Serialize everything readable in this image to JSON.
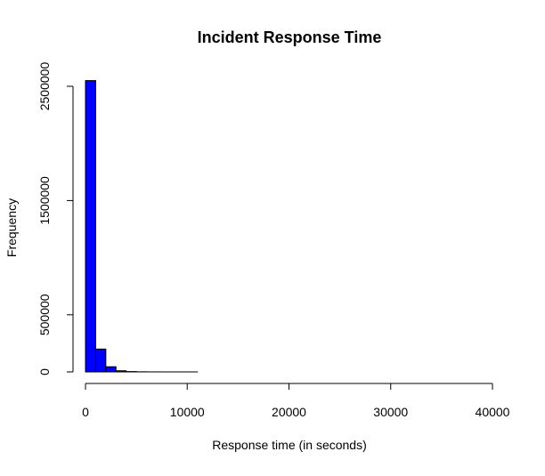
{
  "chart_data": {
    "type": "bar",
    "title": "Incident Response Time",
    "xlabel": "Response time (in seconds)",
    "ylabel": "Frequency",
    "xlim": [
      0,
      40000
    ],
    "ylim": [
      0,
      2500000
    ],
    "x_ticks": [
      0,
      10000,
      20000,
      30000,
      40000
    ],
    "x_tick_labels": [
      "0",
      "10000",
      "20000",
      "30000",
      "40000"
    ],
    "y_ticks": [
      0,
      500000,
      1500000,
      2500000
    ],
    "y_tick_labels": [
      "0",
      "500000",
      "1500000",
      "2500000"
    ],
    "bin_width": 1000,
    "bins": [
      {
        "x0": 0,
        "x1": 1000,
        "value": 2550000
      },
      {
        "x0": 1000,
        "x1": 2000,
        "value": 200000
      },
      {
        "x0": 2000,
        "x1": 3000,
        "value": 45000
      },
      {
        "x0": 3000,
        "x1": 4000,
        "value": 10000
      },
      {
        "x0": 4000,
        "x1": 5000,
        "value": 3000
      },
      {
        "x0": 5000,
        "x1": 6000,
        "value": 1000
      },
      {
        "x0": 6000,
        "x1": 7000,
        "value": 400
      },
      {
        "x0": 7000,
        "x1": 8000,
        "value": 200
      },
      {
        "x0": 8000,
        "x1": 9000,
        "value": 100
      },
      {
        "x0": 9000,
        "x1": 10000,
        "value": 60
      },
      {
        "x0": 10000,
        "x1": 11000,
        "value": 40
      },
      {
        "x0": 11000,
        "x1": 12000,
        "value": 30
      },
      {
        "x0": 12000,
        "x1": 13000,
        "value": 20
      },
      {
        "x0": 13000,
        "x1": 14000,
        "value": 15
      },
      {
        "x0": 14000,
        "x1": 15000,
        "value": 10
      },
      {
        "x0": 15000,
        "x1": 16000,
        "value": 8
      },
      {
        "x0": 16000,
        "x1": 17000,
        "value": 6
      },
      {
        "x0": 17000,
        "x1": 18000,
        "value": 5
      },
      {
        "x0": 18000,
        "x1": 19000,
        "value": 4
      },
      {
        "x0": 19000,
        "x1": 20000,
        "value": 3
      },
      {
        "x0": 20000,
        "x1": 21000,
        "value": 3
      },
      {
        "x0": 21000,
        "x1": 22000,
        "value": 2
      },
      {
        "x0": 22000,
        "x1": 23000,
        "value": 2
      },
      {
        "x0": 23000,
        "x1": 24000,
        "value": 2
      },
      {
        "x0": 24000,
        "x1": 25000,
        "value": 1
      },
      {
        "x0": 25000,
        "x1": 26000,
        "value": 1
      },
      {
        "x0": 26000,
        "x1": 27000,
        "value": 1
      },
      {
        "x0": 27000,
        "x1": 28000,
        "value": 1
      },
      {
        "x0": 28000,
        "x1": 29000,
        "value": 1
      },
      {
        "x0": 29000,
        "x1": 30000,
        "value": 1
      },
      {
        "x0": 30000,
        "x1": 31000,
        "value": 1
      },
      {
        "x0": 31000,
        "x1": 32000,
        "value": 1
      },
      {
        "x0": 32000,
        "x1": 33000,
        "value": 1
      },
      {
        "x0": 33000,
        "x1": 34000,
        "value": 1
      },
      {
        "x0": 34000,
        "x1": 35000,
        "value": 1
      },
      {
        "x0": 35000,
        "x1": 36000,
        "value": 1
      },
      {
        "x0": 36000,
        "x1": 37000,
        "value": 1
      },
      {
        "x0": 37000,
        "x1": 38000,
        "value": 1
      },
      {
        "x0": 38000,
        "x1": 39000,
        "value": 1
      },
      {
        "x0": 39000,
        "x1": 40000,
        "value": 1
      }
    ],
    "bar_fill": "#0000ff",
    "bar_stroke": "#000000",
    "grid": false,
    "legend": "none"
  }
}
